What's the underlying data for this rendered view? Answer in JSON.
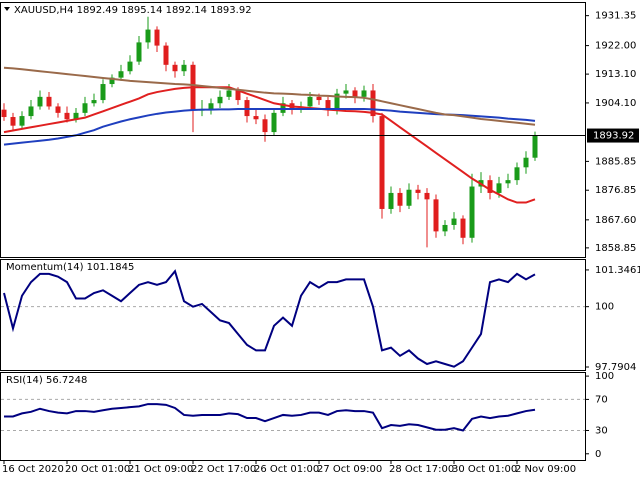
{
  "chart_data": [
    {
      "type": "candlestick",
      "title": "XAUUSD,H4  1892.49 1895.14 1892.14 1893.92",
      "categories": [
        "16 Oct 2020",
        null,
        null,
        null,
        null,
        null,
        null,
        "20 Oct 01:00",
        null,
        null,
        null,
        null,
        null,
        null,
        "21 Oct 09:00",
        null,
        null,
        null,
        null,
        null,
        null,
        "22 Oct 17:00",
        null,
        null,
        null,
        null,
        null,
        null,
        "26 Oct 01:00",
        null,
        null,
        null,
        null,
        null,
        null,
        "27 Oct 09:00",
        null,
        null,
        null,
        null,
        null,
        null,
        null,
        "28 Oct 17:00",
        null,
        null,
        null,
        null,
        null,
        null,
        "30 Oct 01:00",
        null,
        null,
        null,
        null,
        null,
        null,
        "2 Nov 09:00",
        null,
        null
      ],
      "open": [
        1902,
        1899.7,
        1897,
        1900,
        1903,
        1906,
        1903,
        1901,
        1899,
        1901,
        1904,
        1905,
        1910,
        1912,
        1914,
        1917,
        1923,
        1927,
        1922,
        1916,
        1914,
        1916,
        1902,
        1902,
        1904,
        1906,
        1908,
        1905,
        1900,
        1899,
        1895,
        1901,
        1904,
        1902,
        1903,
        1906,
        1905,
        1902,
        1907,
        1908,
        1906,
        1908,
        1900,
        1871,
        1876,
        1872,
        1877,
        1876,
        1874,
        1864,
        1866,
        1868,
        1862,
        1878,
        1880,
        1876,
        1879,
        1880,
        1884,
        1887
      ],
      "high": [
        1904,
        1901,
        1901.5,
        1905,
        1908,
        1907.5,
        1904,
        1903,
        1902.5,
        1906,
        1907,
        1911.5,
        1913,
        1916,
        1919,
        1925,
        1931,
        1928,
        1923,
        1917,
        1917.5,
        1917,
        1905,
        1905.5,
        1908,
        1910,
        1909,
        1906,
        1902,
        1900.5,
        1902.5,
        1906,
        1905,
        1904.5,
        1907.5,
        1907,
        1906,
        1908.5,
        1910,
        1909,
        1909.5,
        1910,
        1901,
        1878,
        1877.5,
        1879,
        1878.5,
        1877.5,
        1875.5,
        1867.5,
        1870,
        1869,
        1882,
        1882.5,
        1881.5,
        1881,
        1882,
        1885.5,
        1889,
        1895.14
      ],
      "low": [
        1898.5,
        1895.5,
        1896,
        1899,
        1902,
        1902,
        1899.5,
        1898,
        1898,
        1900,
        1903,
        1904,
        1909,
        1911,
        1913,
        1916,
        1921,
        1920,
        1914,
        1912,
        1912.5,
        1895,
        1900,
        1900.5,
        1902.5,
        1905,
        1903.5,
        1898,
        1897.5,
        1892,
        1894,
        1900,
        1900.5,
        1901,
        1902,
        1903.5,
        1900,
        1900.5,
        1905.5,
        1904,
        1904.5,
        1898,
        1868,
        1869.5,
        1870,
        1871,
        1874,
        1859,
        1862,
        1862.5,
        1864.5,
        1860,
        1860.5,
        1876,
        1874,
        1874.5,
        1877.5,
        1878.5,
        1882,
        1886
      ],
      "close": [
        1899.7,
        1897,
        1900,
        1903,
        1906,
        1903,
        1901,
        1899,
        1901,
        1904,
        1905,
        1910,
        1912,
        1914,
        1917,
        1923,
        1927,
        1922,
        1916,
        1914,
        1916,
        1902,
        1902,
        1904,
        1906,
        1908,
        1905,
        1900,
        1899,
        1895,
        1901,
        1904,
        1902,
        1903,
        1906,
        1905,
        1902,
        1907,
        1908,
        1906,
        1908,
        1900,
        1871,
        1876,
        1872,
        1877,
        1876,
        1874,
        1864,
        1866,
        1868,
        1862,
        1878,
        1880,
        1876,
        1879,
        1880,
        1884,
        1887,
        1893.92
      ],
      "up_color": "#1a9b1a",
      "down_color": "#e01e1e",
      "lines": [
        {
          "color": "#e02020",
          "values": [
            1895,
            1895.5,
            1896,
            1896.5,
            1897,
            1897.5,
            1898,
            1898.5,
            1899,
            1899.5,
            1900.5,
            1901.5,
            1902.5,
            1903.5,
            1904.5,
            1905.5,
            1906.8,
            1907.5,
            1908,
            1908.5,
            1908.8,
            1909,
            1909,
            1909,
            1909,
            1909,
            1908,
            1907,
            1906,
            1905,
            1904,
            1903.5,
            1903,
            1902.8,
            1902.5,
            1902.3,
            1902,
            1901.8,
            1901.6,
            1901.5,
            1901.3,
            1901,
            1900.5,
            1898.5,
            1896.5,
            1894.5,
            1892.5,
            1890.5,
            1888.5,
            1886.5,
            1884.5,
            1882.5,
            1880.5,
            1878.8,
            1877,
            1875.5,
            1874,
            1873,
            1873,
            1874
          ]
        },
        {
          "color": "#1f3fbf",
          "values": [
            1891.1,
            1891.4,
            1891.7,
            1892,
            1892.3,
            1892.6,
            1893,
            1893.5,
            1894,
            1894.8,
            1895.6,
            1896.7,
            1897.5,
            1898.3,
            1899,
            1899.6,
            1900.2,
            1900.7,
            1901.1,
            1901.4,
            1901.7,
            1901.9,
            1902,
            1902,
            1902.1,
            1902.1,
            1902.2,
            1902.2,
            1902.2,
            1902.2,
            1902.2,
            1902.2,
            1902.2,
            1902.2,
            1902.2,
            1902.2,
            1902.2,
            1902.2,
            1902.2,
            1902.2,
            1902.2,
            1902.1,
            1901.9,
            1901.7,
            1901.4,
            1901.2,
            1901,
            1900.8,
            1900.6,
            1900.5,
            1900.4,
            1900.3,
            1900.1,
            1899.9,
            1899.7,
            1899.5,
            1899.2,
            1899,
            1898.8,
            1898.5
          ]
        },
        {
          "color": "#9a6a4a",
          "values": [
            1915.1,
            1914.9,
            1914.6,
            1914.3,
            1914,
            1913.7,
            1913.4,
            1913.1,
            1912.8,
            1912.5,
            1912.2,
            1911.9,
            1911.6,
            1911.3,
            1911,
            1910.8,
            1910.6,
            1910.4,
            1910.2,
            1910,
            1909.9,
            1909.7,
            1909.4,
            1909.1,
            1908.8,
            1908.5,
            1908.2,
            1907.9,
            1907.6,
            1907.3,
            1907.1,
            1907,
            1906.9,
            1906.7,
            1906.6,
            1906.4,
            1906.3,
            1906.1,
            1906,
            1905.9,
            1905.7,
            1905.2,
            1904.6,
            1904,
            1903.4,
            1902.8,
            1902.2,
            1901.6,
            1901,
            1900.5,
            1900.3,
            1899.9,
            1899.5,
            1899.1,
            1898.8,
            1898.5,
            1898.2,
            1897.9,
            1897.6,
            1897.3
          ]
        }
      ],
      "last_price": 1893.92,
      "ylim": [
        1856,
        1935.3
      ],
      "yticks": [
        1931.35,
        {
          "value": 1922,
          "label": "1922.00"
        },
        {
          "value": 1913.1,
          "label": "1913.10"
        },
        {
          "value": 1904.1,
          "label": "1904.10"
        },
        1885.85,
        1876.85,
        {
          "value": 1867.6,
          "label": "1867.60"
        },
        1858.85
      ]
    },
    {
      "type": "line",
      "title": "Momentum(14) 101.1845",
      "color": "#000080",
      "values": [
        100.5,
        99.2,
        100.4,
        100.9,
        101.2,
        101.2,
        101.1,
        100.9,
        100.3,
        100.3,
        100.5,
        100.6,
        100.4,
        100.2,
        100.5,
        100.8,
        100.9,
        100.8,
        100.9,
        101.3,
        100.2,
        100,
        100.1,
        99.8,
        99.5,
        99.4,
        99,
        98.6,
        98.4,
        98.4,
        99.3,
        99.6,
        99.3,
        100.4,
        100.9,
        100.7,
        100.9,
        100.9,
        101,
        101,
        101,
        100,
        98.4,
        98.5,
        98.2,
        98.4,
        98.1,
        97.9,
        98,
        97.9,
        97.8,
        98,
        98.5,
        99,
        100.9,
        101,
        100.9,
        101.2,
        101,
        101.1845
      ],
      "ylim": [
        97.68,
        101.71
      ],
      "yticks": [
        101.3461,
        100,
        97.7904
      ],
      "levels": [
        100
      ]
    },
    {
      "type": "line",
      "title": "RSI(14) 56.7248",
      "color": "#000080",
      "values": [
        48,
        48,
        52,
        54,
        58,
        55,
        53,
        52,
        55,
        55,
        54,
        56,
        58,
        59,
        60,
        61,
        64,
        64,
        63,
        59,
        50,
        49,
        50,
        50,
        50,
        52,
        51,
        46,
        46,
        42,
        46,
        50,
        49,
        50,
        53,
        53,
        50,
        55,
        56,
        55,
        55,
        53,
        33,
        37,
        36,
        38,
        37,
        34,
        31,
        31,
        33,
        30,
        45,
        48,
        46,
        48,
        49,
        52,
        55,
        56.7248
      ],
      "ylim": [
        -8,
        104
      ],
      "yticks": [
        100,
        70,
        30,
        0
      ],
      "levels": [
        70,
        30
      ]
    }
  ]
}
